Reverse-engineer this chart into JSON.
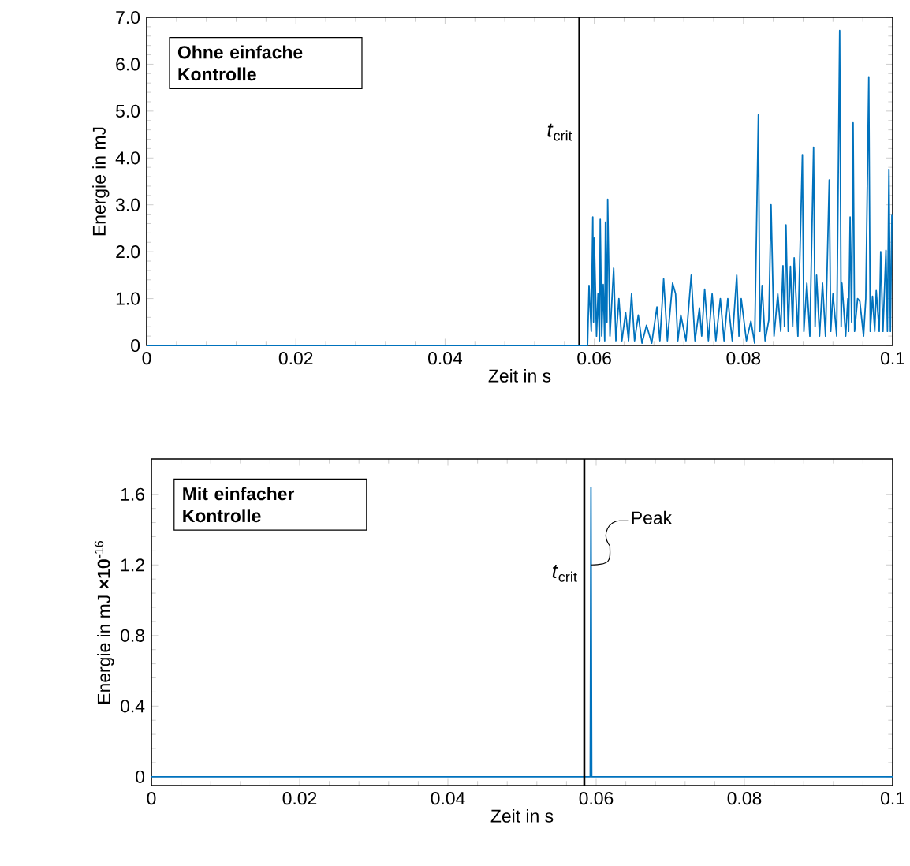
{
  "chart_data": [
    {
      "type": "line",
      "color": "#0072bd",
      "xlabel": "Zeit in s",
      "ylabel": "Energie in mJ",
      "xlim": [
        0,
        0.1
      ],
      "ylim": [
        0,
        7
      ],
      "xticks": [
        0,
        0.02,
        0.04,
        0.06,
        0.08,
        0.1
      ],
      "yticks": [
        0,
        {
          "value": 1,
          "label": "1.0"
        },
        {
          "value": 2,
          "label": "2.0"
        },
        {
          "value": 3,
          "label": "3.0"
        },
        {
          "value": 4,
          "label": "4.0"
        },
        {
          "value": 5,
          "label": "5.0"
        },
        {
          "value": 6,
          "label": "6.0"
        },
        {
          "value": 7,
          "label": "7.0"
        }
      ],
      "ref_lines": [
        {
          "axis": "x",
          "value": 0.058,
          "label": "*t*$_{crit}$",
          "color": "#000000"
        }
      ],
      "annotations": [
        "Ohne einfache Kontrolle"
      ],
      "x": [
        0,
        0.059,
        0.0591,
        0.0593,
        0.0596,
        0.0598,
        0.0599,
        0.06,
        0.0603,
        0.0605,
        0.0607,
        0.0608,
        0.061,
        0.0612,
        0.0614,
        0.0615,
        0.0617,
        0.0618,
        0.0621,
        0.0626,
        0.0629,
        0.0633,
        0.0637,
        0.0642,
        0.0646,
        0.065,
        0.0654,
        0.0659,
        0.0664,
        0.067,
        0.0677,
        0.0684,
        0.0688,
        0.0693,
        0.0698,
        0.0705,
        0.0709,
        0.0712,
        0.0716,
        0.0723,
        0.073,
        0.0735,
        0.0741,
        0.0744,
        0.0748,
        0.0753,
        0.0758,
        0.0763,
        0.0769,
        0.0774,
        0.0779,
        0.0785,
        0.0791,
        0.0794,
        0.0797,
        0.0804,
        0.081,
        0.0815,
        0.082,
        0.0822,
        0.0825,
        0.0829,
        0.0834,
        0.0837,
        0.0841,
        0.0846,
        0.085,
        0.0853,
        0.0855,
        0.0857,
        0.086,
        0.0863,
        0.0866,
        0.0868,
        0.0873,
        0.0879,
        0.0881,
        0.0885,
        0.0889,
        0.0894,
        0.0896,
        0.0898,
        0.0902,
        0.0906,
        0.091,
        0.0915,
        0.0917,
        0.092,
        0.0925,
        0.0929,
        0.0931,
        0.0932,
        0.0937,
        0.094,
        0.0941,
        0.0943,
        0.0945,
        0.0947,
        0.0949,
        0.0953,
        0.0956,
        0.0961,
        0.0964,
        0.0968,
        0.097,
        0.0973,
        0.0976,
        0.0978,
        0.0982,
        0.0984,
        0.0987,
        0.0991,
        0.0993,
        0.0995,
        0.0997,
        0.0999
      ],
      "values": [
        0,
        0,
        0,
        1.28,
        0.3,
        2.74,
        0.5,
        2.29,
        0.2,
        1.1,
        0.1,
        2.69,
        0.2,
        1.3,
        0.1,
        2.63,
        0.5,
        3.12,
        0.2,
        1.65,
        0.1,
        1.0,
        0.1,
        0.7,
        0.1,
        1.1,
        0.1,
        0.65,
        0.05,
        0.43,
        0.05,
        0.82,
        0.1,
        1.42,
        0.1,
        1.33,
        1.1,
        0.1,
        0.65,
        0.1,
        1.5,
        0.1,
        0.8,
        0.2,
        1.2,
        0.1,
        1.1,
        0.1,
        1.0,
        0.1,
        1.0,
        0.1,
        1.5,
        0.2,
        1.0,
        0.1,
        0.52,
        0.05,
        4.92,
        0.3,
        1.28,
        0.1,
        0.54,
        3.0,
        0.2,
        1.1,
        0.3,
        1.7,
        0.4,
        2.57,
        0.3,
        1.69,
        0.4,
        1.87,
        0.2,
        4.07,
        0.3,
        1.33,
        0.2,
        4.23,
        0.4,
        1.5,
        0.2,
        1.33,
        0.2,
        3.53,
        0.3,
        1.1,
        0.2,
        6.72,
        0.4,
        1.33,
        0.2,
        1.0,
        0.3,
        2.74,
        0.5,
        4.75,
        0.3,
        1.0,
        0.94,
        0.2,
        1.0,
        5.73,
        0.3,
        1.05,
        0.3,
        1.17,
        0.3,
        2.0,
        0.3,
        2.03,
        0.3,
        3.76,
        0.3,
        2.8
      ]
    },
    {
      "type": "line",
      "color": "#0072bd",
      "xlabel": "Zeit in s",
      "ylabel": "Energie in mJ **×10**$^{-16}$",
      "xlim": [
        0,
        0.1
      ],
      "ylim": [
        -0.05,
        1.8
      ],
      "xticks": [
        0,
        0.02,
        0.04,
        0.06,
        0.08,
        0.1
      ],
      "yticks": [
        0,
        0.4,
        0.8,
        1.2,
        1.6
      ],
      "ref_lines": [
        {
          "axis": "x",
          "value": 0.0584,
          "label": "*t*$_{crit}$",
          "color": "#000000"
        }
      ],
      "annotations": [
        "Mit einfacher Kontrolle",
        {
          "text": "Peak",
          "x": 0.0593,
          "y": 1.2
        }
      ],
      "x": [
        0,
        0.0592,
        0.0593,
        0.0594,
        0.1
      ],
      "values": [
        0,
        0,
        1.64,
        0,
        0
      ]
    }
  ]
}
